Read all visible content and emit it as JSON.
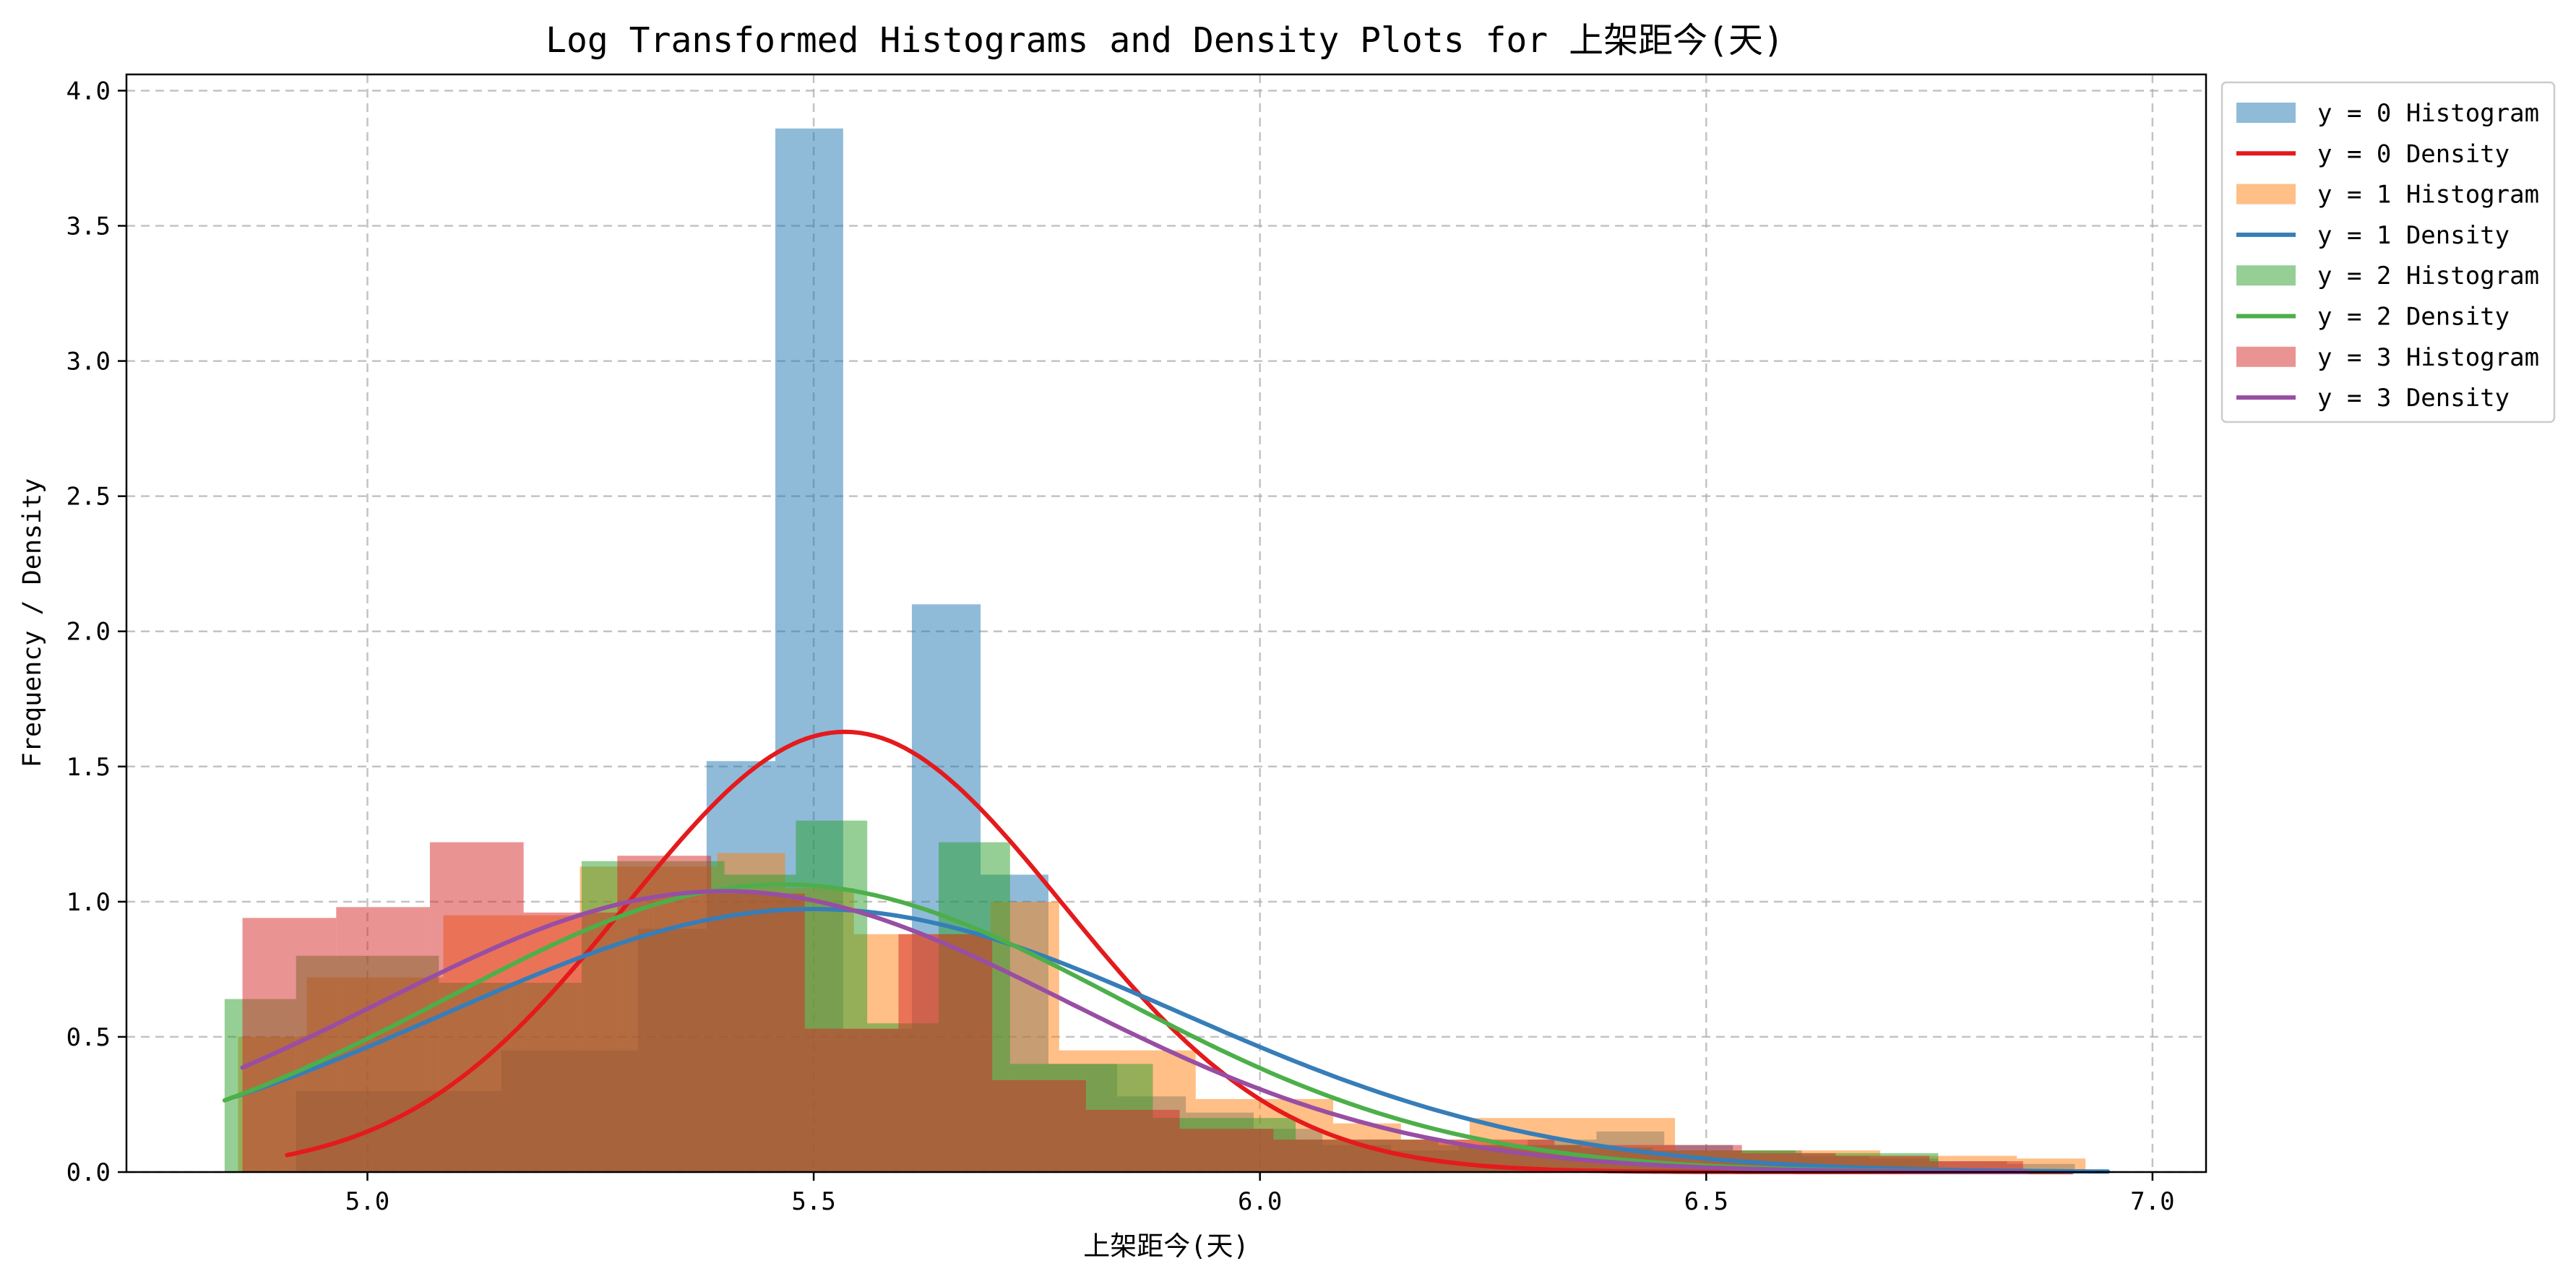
{
  "chart_data": {
    "type": "bar",
    "title": "Log Transformed Histograms and Density Plots for 上架距今(天)",
    "xlabel": "上架距今(天)",
    "ylabel": "Frequency / Density",
    "xlim": [
      4.73,
      7.06
    ],
    "ylim": [
      0.0,
      4.06
    ],
    "xticks": [
      5.0,
      5.5,
      6.0,
      6.5,
      7.0
    ],
    "xtick_labels": [
      "5.0",
      "5.5",
      "6.0",
      "6.5",
      "7.0"
    ],
    "yticks": [
      0.0,
      0.5,
      1.0,
      1.5,
      2.0,
      2.5,
      3.0,
      3.5,
      4.0
    ],
    "ytick_labels": [
      "0.0",
      "0.5",
      "1.0",
      "1.5",
      "2.0",
      "2.5",
      "3.0",
      "3.5",
      "4.0"
    ],
    "grid": true,
    "legend_position": "outside-upper-right",
    "histograms": [
      {
        "name": "y = 0 Histogram",
        "color": "#1f77b4",
        "opacity": 0.5,
        "edges": [
          4.92,
          4.997,
          5.073,
          5.15,
          5.227,
          5.303,
          5.38,
          5.457,
          5.533,
          5.61,
          5.687,
          5.763,
          5.84,
          5.917,
          5.993,
          6.07,
          6.147,
          6.223,
          6.3,
          6.377,
          6.453,
          6.53,
          6.607,
          6.683,
          6.76,
          6.837,
          6.913
        ],
        "values": [
          0.3,
          0.3,
          0.3,
          0.45,
          0.45,
          0.9,
          1.52,
          3.86,
          0.53,
          2.1,
          1.1,
          0.4,
          0.28,
          0.22,
          0.16,
          0.1,
          0.08,
          0.1,
          0.12,
          0.15,
          0.1,
          0.08,
          0.06,
          0.05,
          0.04,
          0.03
        ]
      },
      {
        "name": "y = 1 Histogram",
        "color": "#ff7f0e",
        "opacity": 0.5,
        "edges": [
          4.855,
          4.932,
          5.008,
          5.085,
          5.162,
          5.238,
          5.315,
          5.392,
          5.468,
          5.545,
          5.622,
          5.698,
          5.775,
          5.852,
          5.928,
          6.005,
          6.082,
          6.158,
          6.235,
          6.312,
          6.388,
          6.465,
          6.542,
          6.618,
          6.695,
          6.772,
          6.848,
          6.925
        ],
        "values": [
          0.5,
          0.72,
          0.72,
          0.95,
          0.95,
          1.13,
          1.13,
          1.18,
          1.05,
          0.88,
          0.88,
          1.0,
          0.45,
          0.45,
          0.27,
          0.27,
          0.18,
          0.12,
          0.2,
          0.2,
          0.2,
          0.08,
          0.08,
          0.08,
          0.06,
          0.06,
          0.05
        ]
      },
      {
        "name": "y = 2 Histogram",
        "color": "#2ca02c",
        "opacity": 0.5,
        "edges": [
          4.84,
          4.92,
          5.0,
          5.08,
          5.16,
          5.24,
          5.32,
          5.4,
          5.48,
          5.56,
          5.64,
          5.72,
          5.8,
          5.88,
          5.96,
          6.04,
          6.12,
          6.2,
          6.28,
          6.36,
          6.44,
          6.52,
          6.6,
          6.68,
          6.76
        ],
        "values": [
          0.64,
          0.8,
          0.8,
          0.7,
          0.7,
          1.15,
          1.15,
          1.1,
          1.3,
          0.55,
          1.22,
          0.4,
          0.4,
          0.2,
          0.2,
          0.12,
          0.12,
          0.1,
          0.1,
          0.09,
          0.08,
          0.08,
          0.07,
          0.07
        ]
      },
      {
        "name": "y = 3 Histogram",
        "color": "#d62728",
        "opacity": 0.5,
        "edges": [
          4.86,
          4.965,
          5.07,
          5.175,
          5.28,
          5.385,
          5.49,
          5.595,
          5.7,
          5.805,
          5.91,
          6.015,
          6.12,
          6.225,
          6.33,
          6.435,
          6.54,
          6.645,
          6.75,
          6.855
        ],
        "values": [
          0.94,
          0.98,
          1.22,
          0.96,
          1.17,
          1.03,
          0.53,
          0.88,
          0.34,
          0.23,
          0.16,
          0.12,
          0.12,
          0.12,
          0.1,
          0.1,
          0.07,
          0.06,
          0.04
        ]
      }
    ],
    "densities": [
      {
        "name": "y = 0 Density",
        "color": "#e41a1c",
        "x_range": [
          4.91,
          6.91
        ],
        "mean": 5.535,
        "std": 0.245,
        "scale": 1.0
      },
      {
        "name": "y = 1 Density",
        "color": "#377eb8",
        "x_range": [
          4.85,
          6.95
        ],
        "mean": 5.5,
        "std": 0.41,
        "scale": 1.0
      },
      {
        "name": "y = 2 Density",
        "color": "#4daf4a",
        "x_range": [
          4.84,
          6.78
        ],
        "mean": 5.465,
        "std": 0.375,
        "scale": 1.0
      },
      {
        "name": "y = 3 Density",
        "color": "#984ea3",
        "x_range": [
          4.86,
          6.86
        ],
        "mean": 5.4,
        "std": 0.384,
        "scale": 1.0
      }
    ],
    "legend": [
      {
        "label": "y = 0 Histogram",
        "kind": "patch",
        "color": "#1f77b4",
        "opacity": 0.5
      },
      {
        "label": "y = 0 Density",
        "kind": "line",
        "color": "#e41a1c"
      },
      {
        "label": "y = 1 Histogram",
        "kind": "patch",
        "color": "#ff7f0e",
        "opacity": 0.5
      },
      {
        "label": "y = 1 Density",
        "kind": "line",
        "color": "#377eb8"
      },
      {
        "label": "y = 2 Histogram",
        "kind": "patch",
        "color": "#2ca02c",
        "opacity": 0.5
      },
      {
        "label": "y = 2 Density",
        "kind": "line",
        "color": "#4daf4a"
      },
      {
        "label": "y = 3 Histogram",
        "kind": "patch",
        "color": "#d62728",
        "opacity": 0.5
      },
      {
        "label": "y = 3 Density",
        "kind": "line",
        "color": "#984ea3"
      }
    ]
  }
}
